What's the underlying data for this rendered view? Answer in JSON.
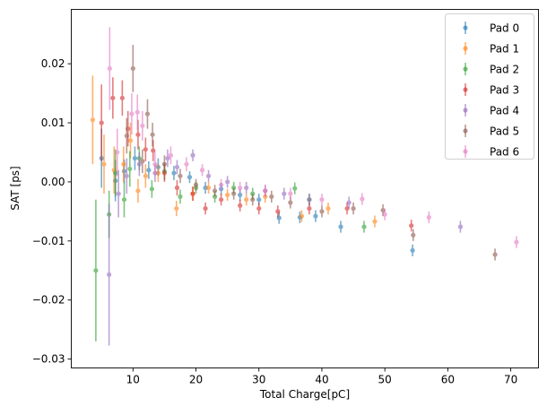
{
  "chart_data": {
    "type": "scatter",
    "title": "",
    "xlabel": "Total Charge[pC]",
    "ylabel": "SAT [ps]",
    "xlim": [
      0.2,
      74.4
    ],
    "ylim": [
      -0.0315,
      0.0292
    ],
    "xticks": [
      10,
      20,
      30,
      40,
      50,
      60,
      70
    ],
    "xtick_labels": [
      "10",
      "20",
      "30",
      "40",
      "50",
      "60",
      "70"
    ],
    "yticks": [
      0.02,
      0.01,
      0.0,
      -0.01,
      -0.02,
      -0.03
    ],
    "ytick_labels": [
      "0.02",
      "0.01",
      "0.00",
      "−0.01",
      "−0.02",
      "−0.03"
    ],
    "grid": false,
    "legend_placement": "top-right",
    "point_format": "[x, y, yerr]",
    "series": [
      {
        "name": "Pad 0",
        "color": "#1f77b4",
        "points": [
          [
            5.0,
            0.004,
            0.005
          ],
          [
            7.2,
            0.0002,
            0.0035
          ],
          [
            8.6,
            0.0018,
            0.002
          ],
          [
            10.3,
            0.004,
            0.002
          ],
          [
            12.5,
            0.002,
            0.0015
          ],
          [
            14.0,
            0.0025,
            0.0015
          ],
          [
            16.5,
            0.0015,
            0.0012
          ],
          [
            19,
            0.0008,
            0.001
          ],
          [
            21.5,
            -0.001,
            0.001
          ],
          [
            24,
            -0.0012,
            0.001
          ],
          [
            27,
            -0.0022,
            0.001
          ],
          [
            30,
            -0.003,
            0.001
          ],
          [
            33.2,
            -0.0061,
            0.001
          ],
          [
            36.5,
            -0.006,
            0.001
          ],
          [
            39,
            -0.0058,
            0.001
          ],
          [
            43,
            -0.0076,
            0.001
          ],
          [
            54.4,
            -0.0116,
            0.001
          ]
        ]
      },
      {
        "name": "Pad 1",
        "color": "#ff7f0e",
        "points": [
          [
            3.6,
            0.0105,
            0.0075
          ],
          [
            5.4,
            0.003,
            0.005
          ],
          [
            7.0,
            0.002,
            0.004
          ],
          [
            8.5,
            0.003,
            0.003
          ],
          [
            9.6,
            0.007,
            0.003
          ],
          [
            10.8,
            -0.0015,
            0.002
          ],
          [
            12,
            0.001,
            0.002
          ],
          [
            14,
            0.0015,
            0.0015
          ],
          [
            16.9,
            -0.0045,
            0.0013
          ],
          [
            19.5,
            -0.002,
            0.0012
          ],
          [
            22,
            -0.001,
            0.001
          ],
          [
            25,
            -0.0022,
            0.001
          ],
          [
            28,
            -0.003,
            0.001
          ],
          [
            31,
            -0.0025,
            0.001
          ],
          [
            36.8,
            -0.0058,
            0.001
          ],
          [
            41,
            -0.0045,
            0.001
          ],
          [
            48.4,
            -0.0067,
            0.001
          ]
        ]
      },
      {
        "name": "Pad 2",
        "color": "#2ca02c",
        "points": [
          [
            4.1,
            -0.015,
            0.012
          ],
          [
            6.2,
            -0.0055,
            0.004
          ],
          [
            7.2,
            0.0015,
            0.004
          ],
          [
            8.6,
            -0.003,
            0.003
          ],
          [
            9.5,
            0.0022,
            0.003
          ],
          [
            11.0,
            0.004,
            0.002
          ],
          [
            13,
            -0.0012,
            0.0015
          ],
          [
            15,
            0.0018,
            0.0015
          ],
          [
            17.5,
            -0.0025,
            0.0012
          ],
          [
            20,
            -0.001,
            0.001
          ],
          [
            23,
            -0.0025,
            0.001
          ],
          [
            26,
            -0.001,
            0.001
          ],
          [
            29,
            -0.002,
            0.001
          ],
          [
            35.7,
            -0.0011,
            0.001
          ],
          [
            38,
            -0.003,
            0.001
          ],
          [
            46.7,
            -0.0076,
            0.001
          ]
        ]
      },
      {
        "name": "Pad 3",
        "color": "#d62728",
        "points": [
          [
            5.0,
            0.01,
            0.0065
          ],
          [
            6.8,
            0.0142,
            0.0035
          ],
          [
            8.3,
            0.0142,
            0.003
          ],
          [
            9.2,
            0.009,
            0.003
          ],
          [
            10.8,
            0.008,
            0.0025
          ],
          [
            12.0,
            0.0055,
            0.002
          ],
          [
            13.2,
            0.0053,
            0.0018
          ],
          [
            15,
            0.0015,
            0.0015
          ],
          [
            17,
            -0.001,
            0.0013
          ],
          [
            19.5,
            -0.002,
            0.0012
          ],
          [
            21.5,
            -0.0045,
            0.001
          ],
          [
            24,
            -0.003,
            0.001
          ],
          [
            27,
            -0.004,
            0.001
          ],
          [
            30,
            -0.0045,
            0.001
          ],
          [
            33,
            -0.005,
            0.001
          ],
          [
            38,
            -0.0045,
            0.001
          ],
          [
            44,
            -0.0045,
            0.001
          ],
          [
            54.2,
            -0.0074,
            0.001
          ]
        ]
      },
      {
        "name": "Pad 4",
        "color": "#9467bd",
        "points": [
          [
            6.2,
            -0.0157,
            0.012
          ],
          [
            7.7,
            -0.002,
            0.004
          ],
          [
            9,
            0.001,
            0.003
          ],
          [
            11,
            0.003,
            0.002
          ],
          [
            13.5,
            0.0015,
            0.0015
          ],
          [
            15.5,
            0.004,
            0.0015
          ],
          [
            17,
            0.0025,
            0.0012
          ],
          [
            19.5,
            0.0045,
            0.001
          ],
          [
            22,
            0.001,
            0.001
          ],
          [
            25,
            0.0,
            0.001
          ],
          [
            28,
            -0.001,
            0.001
          ],
          [
            31,
            -0.0015,
            0.001
          ],
          [
            34,
            -0.002,
            0.001
          ],
          [
            38,
            -0.003,
            0.001
          ],
          [
            44.3,
            -0.0035,
            0.001
          ],
          [
            62,
            -0.0076,
            0.001
          ]
        ]
      },
      {
        "name": "Pad 5",
        "color": "#8c564b",
        "points": [
          [
            10.0,
            0.0192,
            0.004
          ],
          [
            9.0,
            0.0078,
            0.003
          ],
          [
            11.5,
            0.0035,
            0.002
          ],
          [
            12.3,
            0.0115,
            0.0025
          ],
          [
            13.1,
            0.008,
            0.002
          ],
          [
            15,
            0.003,
            0.0015
          ],
          [
            17.5,
            0.001,
            0.0012
          ],
          [
            20,
            -0.0005,
            0.001
          ],
          [
            23,
            -0.0015,
            0.001
          ],
          [
            26,
            -0.002,
            0.001
          ],
          [
            29,
            -0.003,
            0.001
          ],
          [
            32,
            -0.0025,
            0.001
          ],
          [
            35,
            -0.0035,
            0.001
          ],
          [
            40,
            -0.005,
            0.001
          ],
          [
            45,
            -0.0045,
            0.001
          ],
          [
            49.7,
            -0.0048,
            0.001
          ],
          [
            54.5,
            -0.009,
            0.001
          ],
          [
            67.5,
            -0.0123,
            0.001
          ]
        ]
      },
      {
        "name": "Pad 6",
        "color": "#e377c2",
        "points": [
          [
            6.3,
            0.0192,
            0.007
          ],
          [
            7.5,
            0.005,
            0.004
          ],
          [
            9.8,
            0.0115,
            0.0035
          ],
          [
            10.7,
            0.0118,
            0.003
          ],
          [
            11.5,
            0.0095,
            0.0025
          ],
          [
            13.5,
            0.003,
            0.002
          ],
          [
            16,
            0.0045,
            0.0015
          ],
          [
            18.5,
            0.003,
            0.0012
          ],
          [
            21,
            0.002,
            0.001
          ],
          [
            24,
            -0.0005,
            0.001
          ],
          [
            27,
            -0.001,
            0.001
          ],
          [
            31,
            -0.0015,
            0.001
          ],
          [
            35,
            -0.002,
            0.001
          ],
          [
            40,
            -0.003,
            0.001
          ],
          [
            46.4,
            -0.0029,
            0.001
          ],
          [
            50,
            -0.0055,
            0.001
          ],
          [
            57,
            -0.006,
            0.001
          ],
          [
            70.9,
            -0.0102,
            0.001
          ]
        ]
      }
    ]
  }
}
